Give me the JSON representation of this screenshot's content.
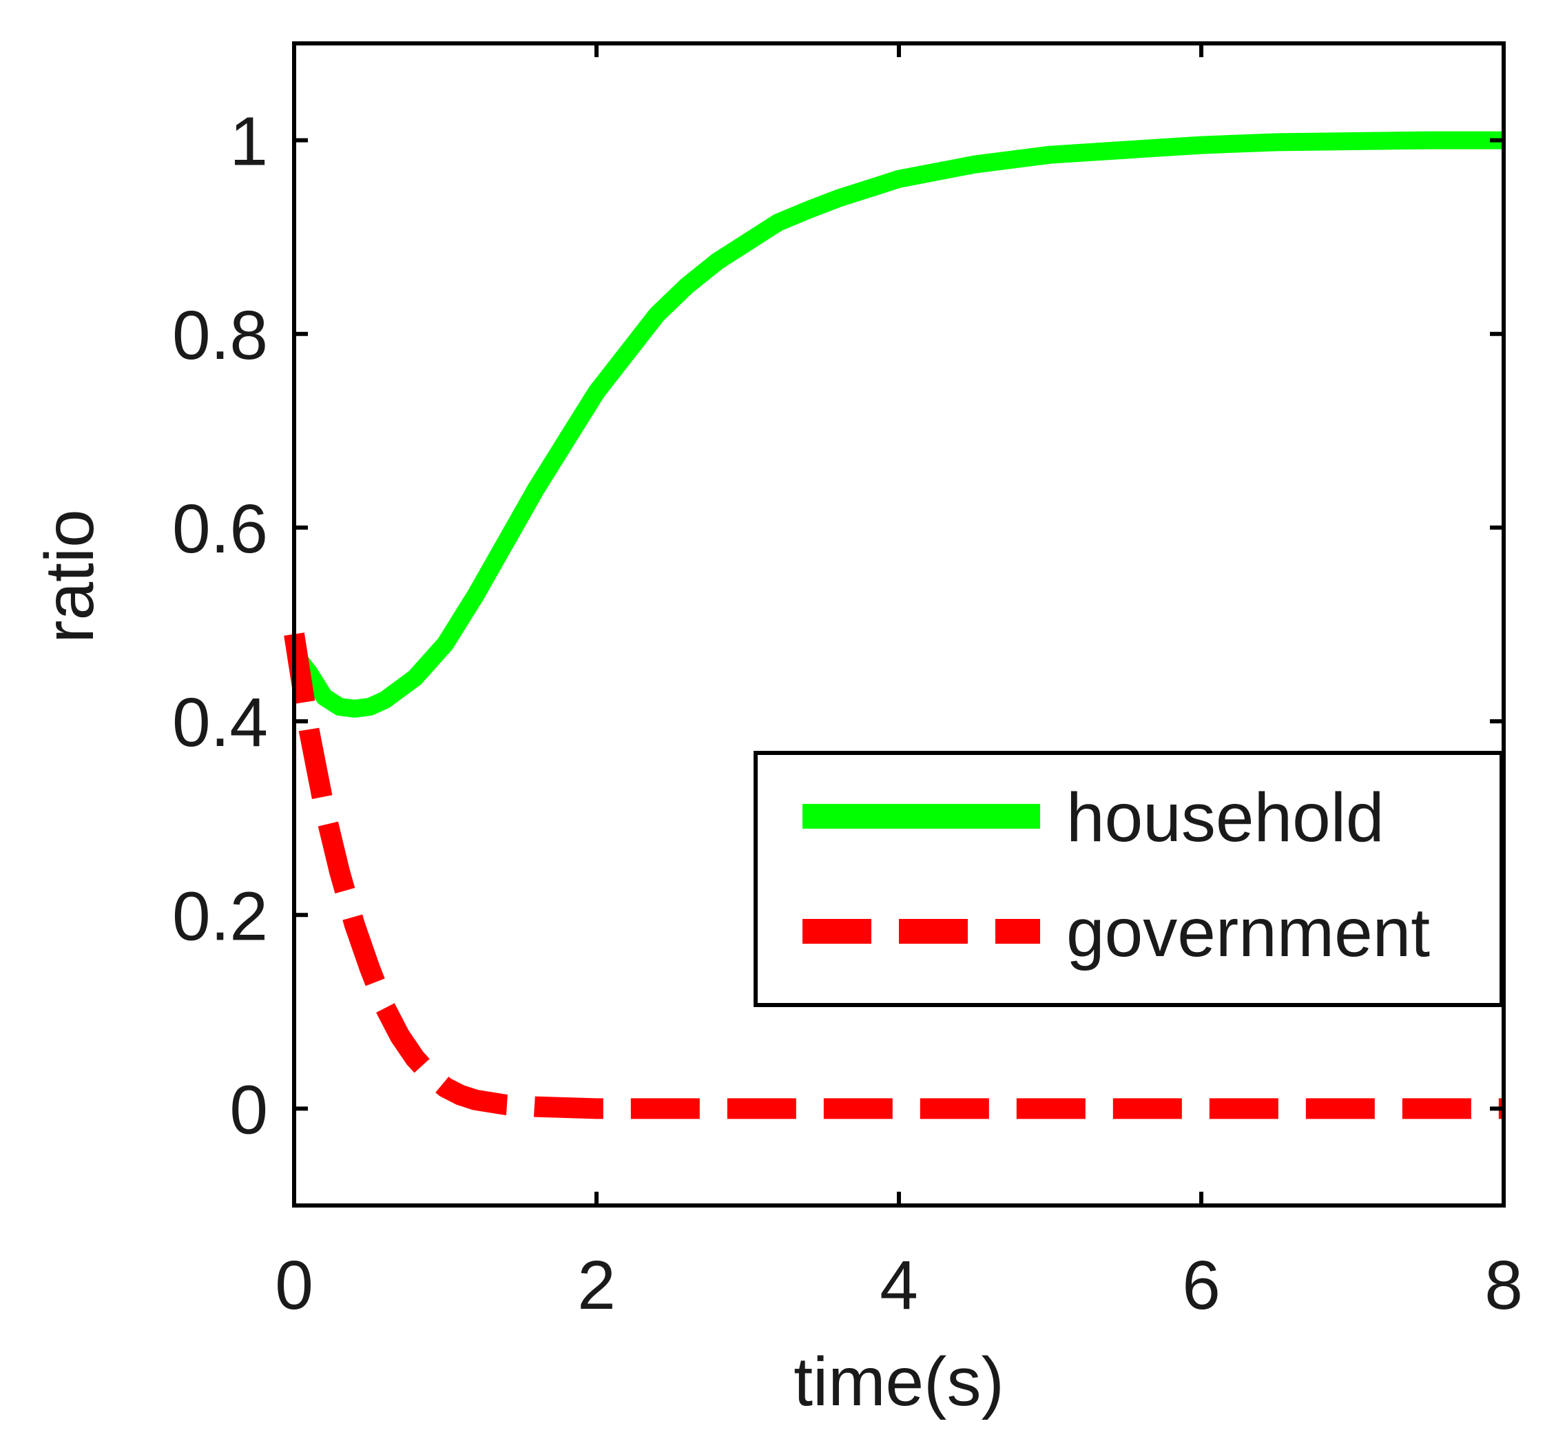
{
  "chart_data": {
    "type": "line",
    "title": "",
    "xlabel": "time(s)",
    "ylabel": "ratio",
    "xlim": [
      0,
      8
    ],
    "ylim": [
      -0.1,
      1.1
    ],
    "xticks": [
      0,
      2,
      4,
      6,
      8
    ],
    "yticks": [
      0,
      0.2,
      0.4,
      0.6,
      0.8,
      1
    ],
    "xtick_labels": [
      "0",
      "2",
      "4",
      "6",
      "8"
    ],
    "ytick_labels": [
      "0",
      "0.2",
      "0.4",
      "0.6",
      "0.8",
      "1"
    ],
    "grid": false,
    "legend_position": "lower-right",
    "series": [
      {
        "name": "household",
        "color": "#00ff00",
        "style": "solid",
        "x": [
          0,
          0.1,
          0.2,
          0.3,
          0.4,
          0.5,
          0.6,
          0.8,
          1.0,
          1.2,
          1.4,
          1.6,
          1.8,
          2.0,
          2.2,
          2.4,
          2.6,
          2.8,
          3.0,
          3.2,
          3.4,
          3.6,
          3.8,
          4.0,
          4.5,
          5.0,
          5.5,
          6.0,
          6.5,
          7.0,
          7.5,
          8.0
        ],
        "y": [
          0.47,
          0.45,
          0.425,
          0.415,
          0.413,
          0.415,
          0.422,
          0.445,
          0.48,
          0.53,
          0.585,
          0.64,
          0.69,
          0.74,
          0.78,
          0.82,
          0.85,
          0.875,
          0.895,
          0.915,
          0.928,
          0.94,
          0.95,
          0.96,
          0.975,
          0.985,
          0.99,
          0.995,
          0.998,
          0.999,
          1.0,
          1.0
        ]
      },
      {
        "name": "government",
        "color": "#ff0000",
        "style": "dashed",
        "x": [
          0,
          0.1,
          0.2,
          0.3,
          0.4,
          0.5,
          0.6,
          0.7,
          0.8,
          0.9,
          1.0,
          1.1,
          1.2,
          1.4,
          1.6,
          2.0,
          3.0,
          4.0,
          5.0,
          6.0,
          7.0,
          8.0
        ],
        "y": [
          0.49,
          0.39,
          0.31,
          0.245,
          0.19,
          0.145,
          0.105,
          0.075,
          0.052,
          0.035,
          0.022,
          0.014,
          0.009,
          0.004,
          0.002,
          0.0,
          0.0,
          0.0,
          0.0,
          0.0,
          0.0,
          0.0
        ]
      }
    ]
  }
}
